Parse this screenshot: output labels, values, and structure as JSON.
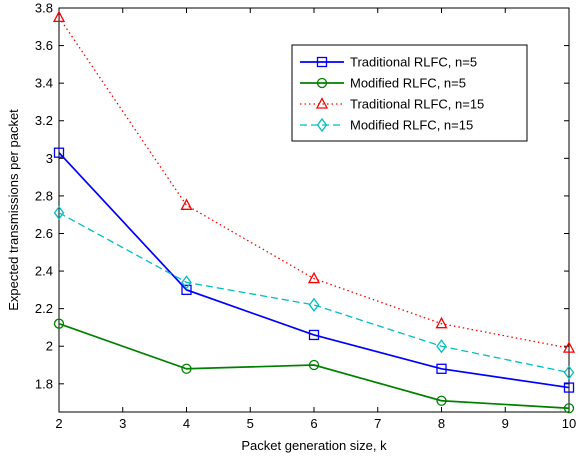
{
  "chart_data": {
    "type": "line",
    "xlabel": "Packet generation size, k",
    "ylabel": "Expected transmissions per packet",
    "xlim": [
      2,
      10
    ],
    "ylim": [
      1.65,
      3.8
    ],
    "xticks": [
      "2",
      "3",
      "4",
      "5",
      "6",
      "7",
      "8",
      "9",
      "10"
    ],
    "yticks": [
      "1.8",
      "2",
      "2.2",
      "2.4",
      "2.6",
      "2.8",
      "3",
      "3.2",
      "3.4",
      "3.6",
      "3.8"
    ],
    "grid": false,
    "legend_position": "top-right",
    "x": [
      2,
      4,
      6,
      8,
      10
    ],
    "series": [
      {
        "name": "Traditional RLFC, n=5",
        "values": [
          3.03,
          2.3,
          2.06,
          1.88,
          1.78
        ],
        "color": "#0000ff",
        "line": "solid",
        "marker": "square"
      },
      {
        "name": "Modified RLFC, n=5",
        "values": [
          2.12,
          1.88,
          1.9,
          1.71,
          1.67
        ],
        "color": "#008000",
        "line": "solid",
        "marker": "circle"
      },
      {
        "name": "Traditional RLFC, n=15",
        "values": [
          3.75,
          2.75,
          2.36,
          2.12,
          1.99
        ],
        "color": "#ff0000",
        "line": "dotted",
        "marker": "triangle"
      },
      {
        "name": "Modified RLFC, n=15",
        "values": [
          2.71,
          2.34,
          2.22,
          2.0,
          1.86
        ],
        "color": "#00bfbf",
        "line": "dashed",
        "marker": "diamond"
      }
    ]
  }
}
